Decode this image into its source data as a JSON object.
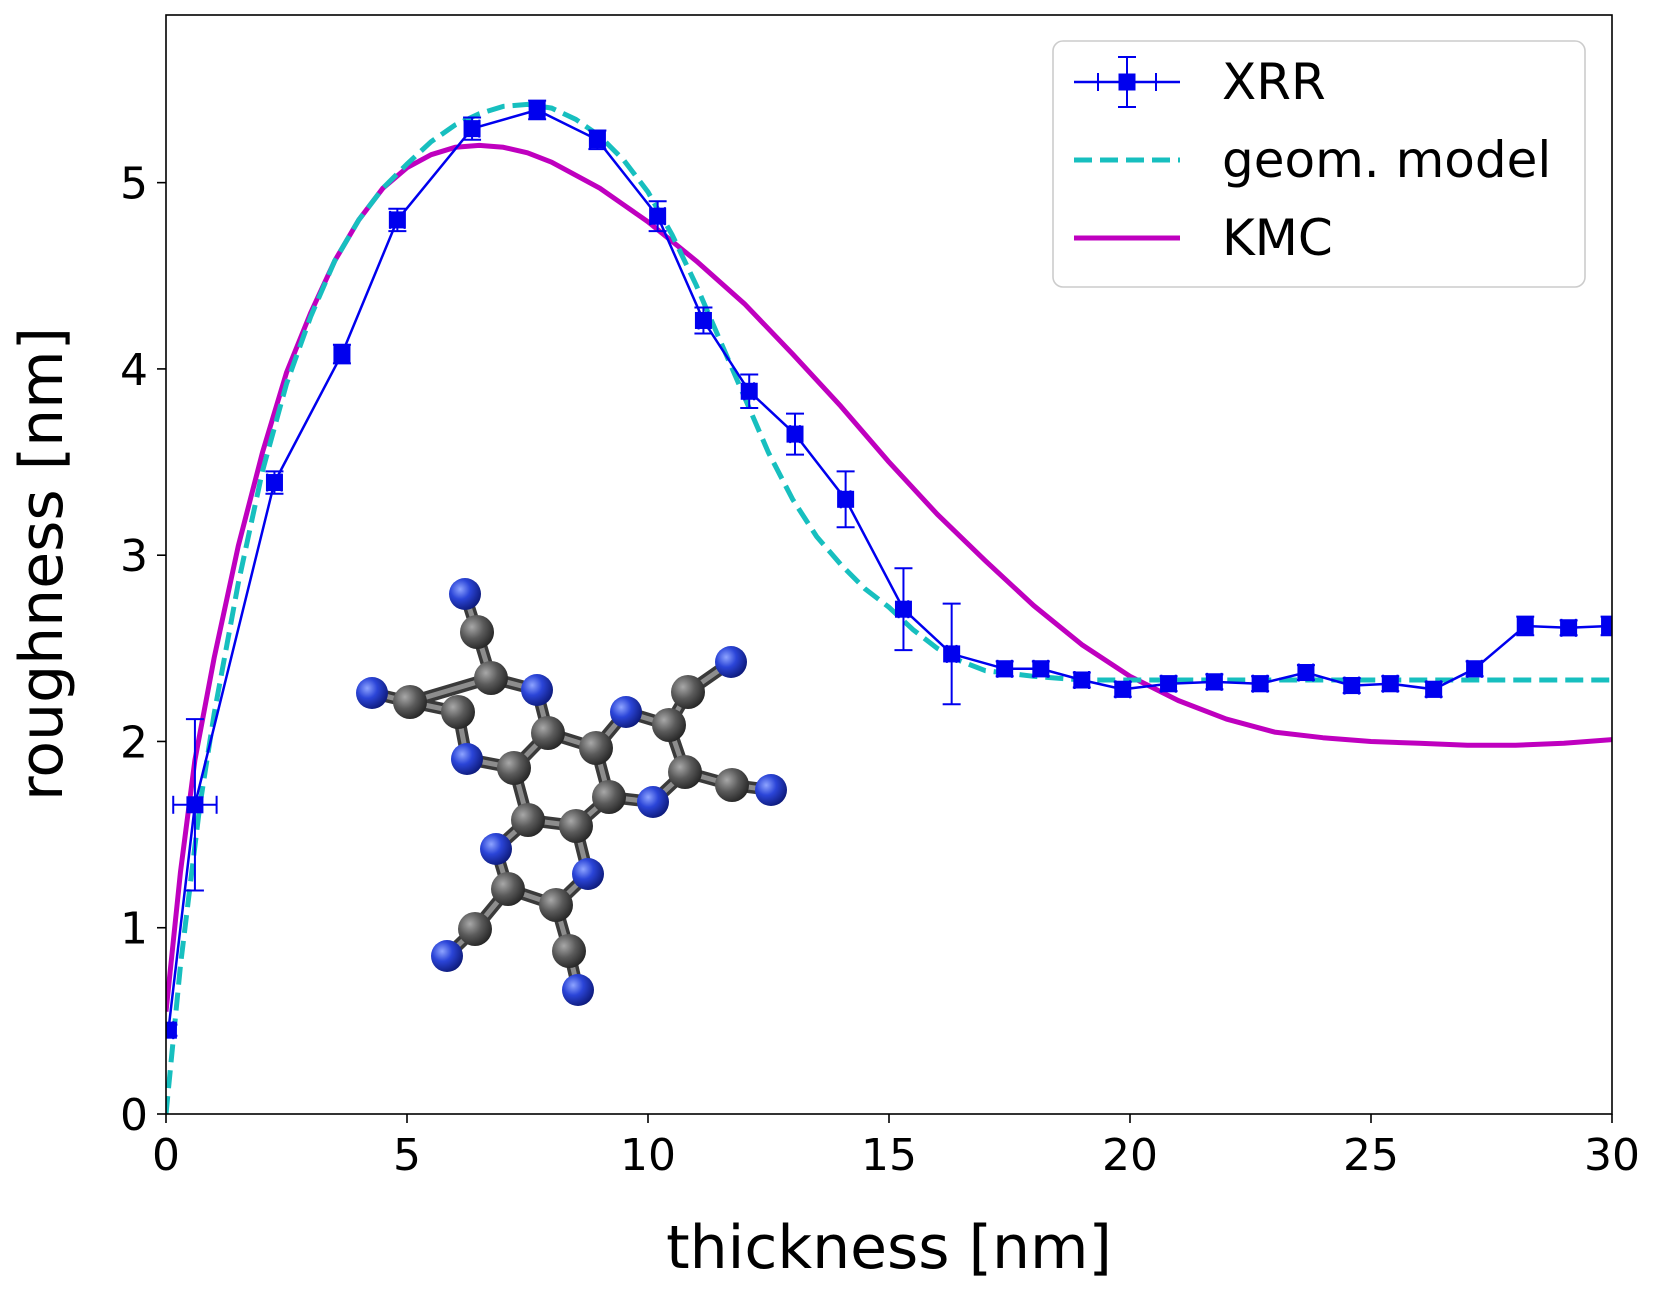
{
  "chart_data": {
    "type": "line",
    "title": "",
    "xlabel": "thickness [nm]",
    "ylabel": "roughness [nm]",
    "xlim": [
      0,
      30
    ],
    "ylim": [
      0,
      5.9
    ],
    "xticks": [
      0,
      5,
      10,
      15,
      20,
      25,
      30
    ],
    "yticks": [
      0,
      1,
      2,
      3,
      4,
      5
    ],
    "grid": false,
    "legend_position": "top-right",
    "series": [
      {
        "name": "XRR",
        "style": "line-square-errorbars",
        "color": "#0000ee",
        "x": [
          0.05,
          0.6,
          2.25,
          3.65,
          4.8,
          6.35,
          7.7,
          8.95,
          10.2,
          11.15,
          12.1,
          13.05,
          14.1,
          15.3,
          16.3,
          17.4,
          18.15,
          19.0,
          19.85,
          20.8,
          21.75,
          22.7,
          23.65,
          24.6,
          25.4,
          26.3,
          27.15,
          28.2,
          29.1,
          29.95
        ],
        "y": [
          0.45,
          1.66,
          3.39,
          4.08,
          4.8,
          5.29,
          5.39,
          5.23,
          4.82,
          4.26,
          3.88,
          3.65,
          3.3,
          2.71,
          2.47,
          2.39,
          2.39,
          2.33,
          2.28,
          2.31,
          2.32,
          2.31,
          2.37,
          2.3,
          2.31,
          2.28,
          2.39,
          2.62,
          2.61,
          2.62
        ],
        "yerr": [
          0.03,
          0.46,
          0.06,
          0.05,
          0.06,
          0.06,
          0.05,
          0.05,
          0.08,
          0.07,
          0.09,
          0.11,
          0.15,
          0.22,
          0.27,
          0.04,
          0.04,
          0.04,
          0.04,
          0.04,
          0.04,
          0.04,
          0.04,
          0.04,
          0.04,
          0.04,
          0.04,
          0.05,
          0.04,
          0.05
        ],
        "xerr": [
          0.1,
          0.45,
          0.15,
          0.15,
          0.15,
          0.15,
          0.15,
          0.15,
          0.15,
          0.1,
          0.1,
          0.1,
          0.1,
          0.1,
          0.1,
          0.15,
          0.15,
          0.15,
          0.15,
          0.15,
          0.15,
          0.15,
          0.15,
          0.15,
          0.15,
          0.15,
          0.15,
          0.15,
          0.15,
          0.15
        ]
      },
      {
        "name": "geom. model",
        "style": "dashed",
        "color": "#17bfbf",
        "x": [
          0,
          0.3,
          0.7,
          1.0,
          1.5,
          2.0,
          2.5,
          3.0,
          3.5,
          4.0,
          4.5,
          5.0,
          5.5,
          6.0,
          6.5,
          7.0,
          7.5,
          8.0,
          8.5,
          9.0,
          9.5,
          10.0,
          10.5,
          11.0,
          11.5,
          12.0,
          12.5,
          13.0,
          13.5,
          14.0,
          14.5,
          15.0,
          15.5,
          16.0,
          16.5,
          17.0,
          18.0,
          19.0,
          20.0,
          22.0,
          25.0,
          30.0
        ],
        "y": [
          0.0,
          0.8,
          1.65,
          2.15,
          2.85,
          3.45,
          3.92,
          4.28,
          4.58,
          4.8,
          4.97,
          5.1,
          5.22,
          5.31,
          5.37,
          5.41,
          5.42,
          5.4,
          5.34,
          5.25,
          5.12,
          4.95,
          4.72,
          4.45,
          4.15,
          3.85,
          3.55,
          3.3,
          3.1,
          2.95,
          2.82,
          2.72,
          2.6,
          2.5,
          2.43,
          2.38,
          2.35,
          2.33,
          2.33,
          2.33,
          2.33,
          2.33
        ]
      },
      {
        "name": "KMC",
        "style": "solid",
        "color": "#bf00bf",
        "x": [
          0,
          0.3,
          0.6,
          1.0,
          1.5,
          2.0,
          2.5,
          3.0,
          3.5,
          4.0,
          4.5,
          5.0,
          5.5,
          6.0,
          6.5,
          7.0,
          7.5,
          8.0,
          8.5,
          9.0,
          9.5,
          10.0,
          11.0,
          12.0,
          13.0,
          14.0,
          15.0,
          16.0,
          17.0,
          18.0,
          19.0,
          20.0,
          21.0,
          22.0,
          23.0,
          24.0,
          25.0,
          26.0,
          27.0,
          28.0,
          29.0,
          30.0
        ],
        "y": [
          0.55,
          1.3,
          1.9,
          2.45,
          3.05,
          3.55,
          3.98,
          4.3,
          4.58,
          4.8,
          4.97,
          5.08,
          5.15,
          5.19,
          5.2,
          5.19,
          5.16,
          5.11,
          5.04,
          4.97,
          4.88,
          4.79,
          4.58,
          4.35,
          4.08,
          3.8,
          3.5,
          3.22,
          2.97,
          2.73,
          2.52,
          2.35,
          2.22,
          2.12,
          2.05,
          2.02,
          2.0,
          1.99,
          1.98,
          1.98,
          1.99,
          2.01
        ]
      }
    ]
  }
}
